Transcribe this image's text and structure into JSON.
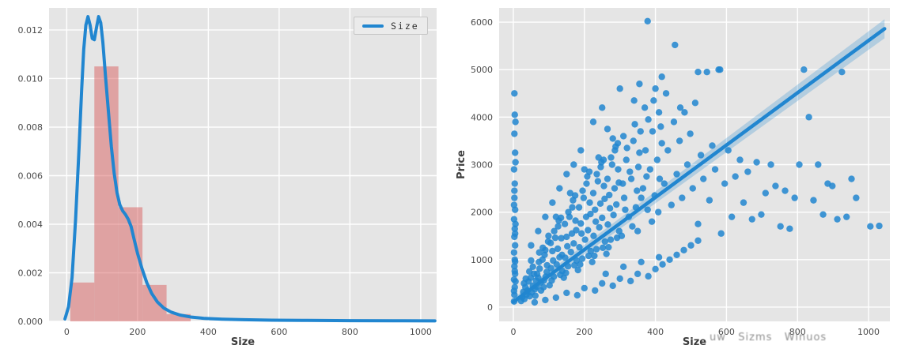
{
  "colors": {
    "plot_bg": "#e5e5e5",
    "grid": "#ffffff",
    "blue": "#2186d0",
    "hist_fill": "#d9605f",
    "tick_text": "#4a4a4a",
    "watermark": "#8f8f8f"
  },
  "watermark": {
    "text": "uw   Sizms   Winuos"
  },
  "chart_data": [
    {
      "type": "histogram+kde",
      "title": "",
      "xlabel": "Size",
      "ylabel": "",
      "legend_label": "Size",
      "xlim": [
        -50,
        1045
      ],
      "ylim": [
        0,
        0.01291
      ],
      "xticks": [
        0,
        200,
        400,
        600,
        800,
        1000
      ],
      "xtick_labels": [
        "0",
        "200",
        "400",
        "600",
        "800",
        "1000"
      ],
      "yticks": [
        0,
        0.002,
        0.004,
        0.006,
        0.008,
        0.01,
        0.012
      ],
      "ytick_labels": [
        "0.000",
        "0.002",
        "0.004",
        "0.006",
        "0.008",
        "0.010",
        "0.012"
      ],
      "hist": {
        "bin_edges": [
          10,
          78,
          146,
          214,
          282,
          350
        ],
        "heights": [
          0.0016,
          0.0105,
          0.0047,
          0.0015,
          0.0003
        ]
      },
      "kde": {
        "x": [
          -5,
          5,
          15,
          25,
          35,
          42,
          48,
          54,
          60,
          66,
          72,
          78,
          84,
          90,
          96,
          102,
          110,
          118,
          126,
          134,
          142,
          150,
          158,
          166,
          174,
          182,
          190,
          200,
          212,
          226,
          240,
          256,
          274,
          295,
          320,
          350,
          390,
          440,
          500,
          580,
          680,
          800,
          920,
          1040
        ],
        "y": [
          0.0001,
          0.0006,
          0.0018,
          0.0042,
          0.0072,
          0.0095,
          0.0112,
          0.0122,
          0.01255,
          0.0122,
          0.01165,
          0.0116,
          0.0121,
          0.01255,
          0.0123,
          0.0115,
          0.01,
          0.0086,
          0.0072,
          0.0061,
          0.0053,
          0.0048,
          0.00455,
          0.0044,
          0.0042,
          0.0039,
          0.0034,
          0.0028,
          0.0022,
          0.0016,
          0.00115,
          0.0008,
          0.00055,
          0.00038,
          0.00026,
          0.00018,
          0.00012,
          9e-05,
          7e-05,
          5e-05,
          4e-05,
          3e-05,
          2.5e-05,
          2e-05
        ]
      }
    },
    {
      "type": "scatter+regression",
      "title": "",
      "xlabel": "Size",
      "ylabel": "Price",
      "xlim": [
        -40,
        1060
      ],
      "ylim": [
        -300,
        6300
      ],
      "xticks": [
        0,
        200,
        400,
        600,
        800,
        1000
      ],
      "xtick_labels": [
        "0",
        "200",
        "400",
        "600",
        "800",
        "1000"
      ],
      "yticks": [
        0,
        1000,
        2000,
        3000,
        4000,
        5000,
        6000
      ],
      "ytick_labels": [
        "0",
        "1000",
        "2000",
        "3000",
        "4000",
        "5000",
        "6000"
      ],
      "regression": {
        "x": [
          0,
          1045
        ],
        "y": [
          110,
          5860
        ],
        "band_upper": [
          190,
          6060
        ],
        "band_lower": [
          30,
          5660
        ]
      },
      "points": [
        [
          2,
          120
        ],
        [
          3,
          260
        ],
        [
          4,
          420
        ],
        [
          2,
          580
        ],
        [
          5,
          700
        ],
        [
          3,
          860
        ],
        [
          4,
          1000
        ],
        [
          2,
          1150
        ],
        [
          5,
          1300
        ],
        [
          3,
          1480
        ],
        [
          4,
          1650
        ],
        [
          2,
          1850
        ],
        [
          5,
          2050
        ],
        [
          3,
          2300
        ],
        [
          4,
          2600
        ],
        [
          2,
          2900
        ],
        [
          5,
          3250
        ],
        [
          3,
          3650
        ],
        [
          4,
          4050
        ],
        [
          3,
          4500
        ],
        [
          5,
          960
        ],
        [
          6,
          1750
        ],
        [
          2,
          2150
        ],
        [
          6,
          3050
        ],
        [
          4,
          760
        ],
        [
          6,
          540
        ],
        [
          2,
          340
        ],
        [
          5,
          1550
        ],
        [
          3,
          2450
        ],
        [
          6,
          3900
        ],
        [
          22,
          130
        ],
        [
          25,
          210
        ],
        [
          28,
          320
        ],
        [
          31,
          170
        ],
        [
          34,
          420
        ],
        [
          37,
          260
        ],
        [
          40,
          350
        ],
        [
          43,
          540
        ],
        [
          46,
          230
        ],
        [
          49,
          620
        ],
        [
          52,
          310
        ],
        [
          55,
          450
        ],
        [
          58,
          700
        ],
        [
          61,
          380
        ],
        [
          64,
          560
        ],
        [
          35,
          600
        ],
        [
          45,
          750
        ],
        [
          55,
          850
        ],
        [
          30,
          500
        ],
        [
          50,
          980
        ],
        [
          62,
          240
        ],
        [
          66,
          430
        ],
        [
          70,
          620
        ],
        [
          74,
          810
        ],
        [
          78,
          350
        ],
        [
          82,
          1000
        ],
        [
          86,
          560
        ],
        [
          90,
          1200
        ],
        [
          94,
          740
        ],
        [
          98,
          1380
        ],
        [
          72,
          950
        ],
        [
          88,
          1100
        ],
        [
          95,
          880
        ],
        [
          67,
          700
        ],
        [
          83,
          1250
        ],
        [
          77,
          520
        ],
        [
          91,
          640
        ],
        [
          99,
          1500
        ],
        [
          85,
          420
        ],
        [
          73,
          1150
        ],
        [
          102,
          460
        ],
        [
          106,
          820
        ],
        [
          110,
          1180
        ],
        [
          114,
          640
        ],
        [
          118,
          1460
        ],
        [
          122,
          900
        ],
        [
          126,
          1700
        ],
        [
          130,
          1050
        ],
        [
          134,
          1880
        ],
        [
          138,
          760
        ],
        [
          105,
          1350
        ],
        [
          115,
          1600
        ],
        [
          125,
          1230
        ],
        [
          135,
          1450
        ],
        [
          108,
          560
        ],
        [
          128,
          1820
        ],
        [
          112,
          980
        ],
        [
          132,
          680
        ],
        [
          120,
          1900
        ],
        [
          137,
          1100
        ],
        [
          142,
          620
        ],
        [
          146,
          1040
        ],
        [
          150,
          1480
        ],
        [
          154,
          860
        ],
        [
          158,
          1900
        ],
        [
          162,
          1160
        ],
        [
          166,
          2100
        ],
        [
          170,
          1340
        ],
        [
          174,
          2350
        ],
        [
          178,
          980
        ],
        [
          145,
          1750
        ],
        [
          155,
          2000
        ],
        [
          165,
          1550
        ],
        [
          175,
          1820
        ],
        [
          148,
          720
        ],
        [
          168,
          2250
        ],
        [
          152,
          1280
        ],
        [
          172,
          880
        ],
        [
          160,
          2400
        ],
        [
          177,
          1620
        ],
        [
          182,
          780
        ],
        [
          186,
          1260
        ],
        [
          190,
          1760
        ],
        [
          194,
          1020
        ],
        [
          198,
          2300
        ],
        [
          202,
          1420
        ],
        [
          206,
          2600
        ],
        [
          210,
          1620
        ],
        [
          214,
          2850
        ],
        [
          218,
          1180
        ],
        [
          185,
          2100
        ],
        [
          195,
          2450
        ],
        [
          205,
          1900
        ],
        [
          215,
          2200
        ],
        [
          188,
          900
        ],
        [
          208,
          2750
        ],
        [
          192,
          1550
        ],
        [
          212,
          1080
        ],
        [
          200,
          2900
        ],
        [
          217,
          1960
        ],
        [
          222,
          950
        ],
        [
          226,
          1500
        ],
        [
          230,
          2050
        ],
        [
          234,
          1220
        ],
        [
          238,
          2650
        ],
        [
          242,
          1680
        ],
        [
          246,
          2950
        ],
        [
          250,
          1880
        ],
        [
          254,
          3100
        ],
        [
          258,
          1380
        ],
        [
          225,
          2400
        ],
        [
          235,
          2800
        ],
        [
          245,
          2180
        ],
        [
          255,
          2550
        ],
        [
          228,
          1080
        ],
        [
          248,
          3050
        ],
        [
          232,
          1800
        ],
        [
          252,
          1250
        ],
        [
          240,
          3150
        ],
        [
          257,
          2280
        ],
        [
          262,
          1120
        ],
        [
          266,
          1740
        ],
        [
          270,
          2360
        ],
        [
          274,
          1420
        ],
        [
          278,
          3000
        ],
        [
          282,
          1940
        ],
        [
          286,
          3300
        ],
        [
          290,
          2160
        ],
        [
          294,
          3450
        ],
        [
          298,
          1600
        ],
        [
          265,
          2700
        ],
        [
          275,
          3150
        ],
        [
          285,
          2500
        ],
        [
          295,
          2900
        ],
        [
          268,
          1260
        ],
        [
          288,
          3380
        ],
        [
          272,
          2080
        ],
        [
          292,
          1460
        ],
        [
          280,
          3550
        ],
        [
          297,
          2620
        ],
        [
          305,
          1500
        ],
        [
          312,
          2300
        ],
        [
          318,
          3100
        ],
        [
          325,
          1900
        ],
        [
          332,
          2700
        ],
        [
          338,
          3500
        ],
        [
          345,
          2100
        ],
        [
          352,
          2950
        ],
        [
          358,
          3700
        ],
        [
          308,
          2600
        ],
        [
          320,
          3350
        ],
        [
          335,
          1700
        ],
        [
          348,
          2450
        ],
        [
          355,
          3250
        ],
        [
          315,
          2050
        ],
        [
          342,
          3850
        ],
        [
          328,
          2850
        ],
        [
          310,
          3600
        ],
        [
          350,
          1600
        ],
        [
          360,
          2300
        ],
        [
          365,
          2500
        ],
        [
          372,
          3300
        ],
        [
          378,
          2050
        ],
        [
          385,
          2900
        ],
        [
          392,
          3700
        ],
        [
          398,
          2350
        ],
        [
          405,
          3100
        ],
        [
          412,
          2700
        ],
        [
          418,
          3450
        ],
        [
          370,
          4200
        ],
        [
          380,
          3950
        ],
        [
          395,
          4350
        ],
        [
          408,
          2000
        ],
        [
          415,
          3800
        ],
        [
          375,
          2750
        ],
        [
          400,
          4600
        ],
        [
          390,
          1800
        ],
        [
          410,
          4100
        ],
        [
          425,
          2600
        ],
        [
          435,
          3300
        ],
        [
          445,
          2150
        ],
        [
          452,
          3900
        ],
        [
          460,
          2800
        ],
        [
          468,
          3500
        ],
        [
          475,
          2300
        ],
        [
          482,
          4100
        ],
        [
          490,
          3000
        ],
        [
          498,
          3650
        ],
        [
          505,
          2500
        ],
        [
          512,
          4300
        ],
        [
          520,
          1750
        ],
        [
          528,
          3200
        ],
        [
          535,
          2700
        ],
        [
          545,
          4950
        ],
        [
          552,
          2250
        ],
        [
          560,
          3400
        ],
        [
          568,
          2900
        ],
        [
          578,
          5000
        ],
        [
          585,
          1550
        ],
        [
          595,
          2600
        ],
        [
          605,
          3300
        ],
        [
          615,
          1900
        ],
        [
          625,
          2750
        ],
        [
          638,
          3100
        ],
        [
          648,
          2200
        ],
        [
          660,
          2850
        ],
        [
          672,
          1850
        ],
        [
          685,
          3050
        ],
        [
          698,
          1950
        ],
        [
          710,
          2400
        ],
        [
          725,
          3000
        ],
        [
          738,
          2550
        ],
        [
          752,
          1700
        ],
        [
          765,
          2450
        ],
        [
          778,
          1650
        ],
        [
          792,
          2300
        ],
        [
          805,
          3000
        ],
        [
          818,
          5000
        ],
        [
          832,
          4000
        ],
        [
          845,
          2250
        ],
        [
          858,
          3000
        ],
        [
          872,
          1950
        ],
        [
          885,
          2600
        ],
        [
          898,
          2550
        ],
        [
          912,
          1850
        ],
        [
          925,
          4950
        ],
        [
          938,
          1900
        ],
        [
          952,
          2700
        ],
        [
          965,
          2300
        ],
        [
          1005,
          1700
        ],
        [
          1030,
          1710
        ],
        [
          378,
          6020
        ],
        [
          455,
          5520
        ],
        [
          300,
          4600
        ],
        [
          340,
          4350
        ],
        [
          418,
          4850
        ],
        [
          520,
          4950
        ],
        [
          582,
          5000
        ],
        [
          250,
          4200
        ],
        [
          225,
          3900
        ],
        [
          265,
          3750
        ],
        [
          190,
          3300
        ],
        [
          170,
          3000
        ],
        [
          150,
          2800
        ],
        [
          130,
          2500
        ],
        [
          110,
          2200
        ],
        [
          90,
          1900
        ],
        [
          70,
          1600
        ],
        [
          50,
          1300
        ],
        [
          355,
          4700
        ],
        [
          430,
          4500
        ],
        [
          470,
          4200
        ],
        [
          150,
          300
        ],
        [
          200,
          400
        ],
        [
          250,
          500
        ],
        [
          300,
          600
        ],
        [
          350,
          700
        ],
        [
          400,
          800
        ],
        [
          180,
          250
        ],
        [
          230,
          350
        ],
        [
          280,
          450
        ],
        [
          330,
          550
        ],
        [
          380,
          650
        ],
        [
          120,
          200
        ],
        [
          90,
          150
        ],
        [
          60,
          100
        ],
        [
          420,
          900
        ],
        [
          440,
          1000
        ],
        [
          460,
          1100
        ],
        [
          480,
          1200
        ],
        [
          500,
          1300
        ],
        [
          520,
          1400
        ],
        [
          260,
          700
        ],
        [
          310,
          850
        ],
        [
          360,
          950
        ],
        [
          410,
          1050
        ]
      ]
    }
  ]
}
